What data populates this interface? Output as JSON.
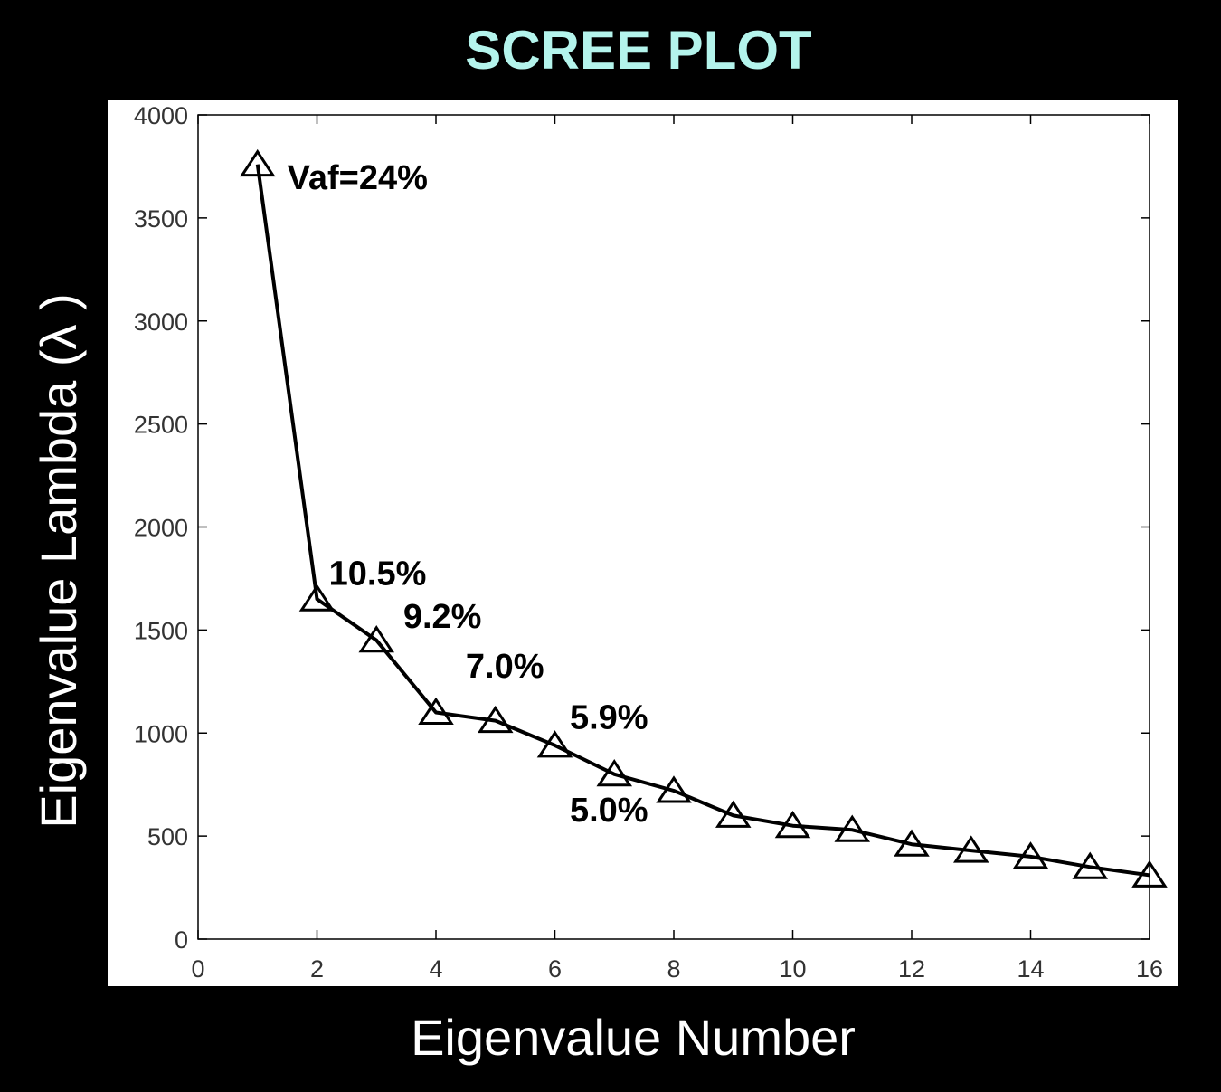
{
  "colors": {
    "background": "#000000",
    "plot_background": "#ffffff",
    "title": "#b4f4ec",
    "axis_labels": "#ffffff",
    "series": "#000000"
  },
  "chart_data": {
    "type": "line",
    "title": "SCREE PLOT",
    "xlabel": "Eigenvalue Number",
    "ylabel": "Eigenvalue Lambda (λ )",
    "xlim": [
      0,
      16
    ],
    "ylim": [
      0,
      4000
    ],
    "xticks": [
      0,
      2,
      4,
      6,
      8,
      10,
      12,
      14,
      16
    ],
    "yticks": [
      0,
      500,
      1000,
      1500,
      2000,
      2500,
      3000,
      3500,
      4000
    ],
    "xtick_labels": [
      "0",
      "2",
      "4",
      "6",
      "8",
      "10",
      "12",
      "14",
      "16"
    ],
    "ytick_labels": [
      "0",
      "500",
      "1000",
      "1500",
      "2000",
      "2500",
      "3000",
      "3500",
      "4000"
    ],
    "marker": "triangle",
    "grid": false,
    "series": [
      {
        "x": [
          1,
          2,
          3,
          4,
          5,
          6,
          7,
          8,
          9,
          10,
          11,
          12,
          13,
          14,
          15,
          16
        ],
        "values": [
          3760,
          1650,
          1450,
          1100,
          1060,
          940,
          800,
          720,
          600,
          550,
          530,
          460,
          430,
          400,
          350,
          310
        ]
      }
    ],
    "annotations": [
      {
        "text": "Vaf=24%",
        "x": 1.5,
        "y": 3640
      },
      {
        "text": "10.5%",
        "x": 2.2,
        "y": 1720
      },
      {
        "text": "9.2%",
        "x": 3.45,
        "y": 1510
      },
      {
        "text": "7.0%",
        "x": 4.5,
        "y": 1270
      },
      {
        "text": "5.9%",
        "x": 6.25,
        "y": 1020
      },
      {
        "text": "5.0%",
        "x": 6.25,
        "y": 570
      }
    ]
  }
}
